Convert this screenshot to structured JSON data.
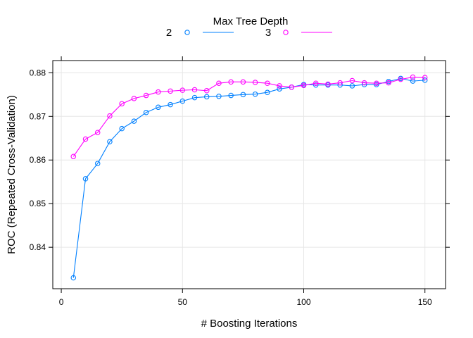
{
  "chart_data": {
    "type": "line",
    "legend": {
      "title": "Max Tree Depth",
      "placement": "top"
    },
    "xlabel": "# Boosting Iterations",
    "ylabel": "ROC (Repeated Cross-Validation)",
    "xlim": [
      -3.5,
      158.5
    ],
    "ylim": [
      0.8305,
      0.8828
    ],
    "xticks": [
      0,
      50,
      100,
      150
    ],
    "yticks": [
      0.84,
      0.85,
      0.86,
      0.87,
      0.88
    ],
    "xtick_labels": [
      "0",
      "50",
      "100",
      "150"
    ],
    "ytick_labels": [
      "0.84",
      "0.85",
      "0.86",
      "0.87",
      "0.88"
    ],
    "grid": true,
    "x": [
      5,
      10,
      15,
      20,
      25,
      30,
      35,
      40,
      45,
      50,
      55,
      60,
      65,
      70,
      75,
      80,
      85,
      90,
      95,
      100,
      105,
      110,
      115,
      120,
      125,
      130,
      135,
      140,
      145,
      150
    ],
    "series": [
      {
        "name": "2",
        "color": "#0080ff",
        "values": [
          0.833,
          0.8557,
          0.8592,
          0.8642,
          0.8672,
          0.8689,
          0.8709,
          0.8721,
          0.8727,
          0.8735,
          0.8743,
          0.8745,
          0.8746,
          0.8748,
          0.875,
          0.8751,
          0.8755,
          0.8763,
          0.8767,
          0.8773,
          0.8772,
          0.8772,
          0.8772,
          0.877,
          0.8773,
          0.8773,
          0.878,
          0.8787,
          0.8781,
          0.8783
        ]
      },
      {
        "name": "3",
        "color": "#ff00ff",
        "values": [
          0.8608,
          0.8648,
          0.8663,
          0.8701,
          0.8729,
          0.8741,
          0.8748,
          0.8756,
          0.8758,
          0.876,
          0.8761,
          0.8759,
          0.8776,
          0.8779,
          0.8779,
          0.8778,
          0.8776,
          0.877,
          0.8767,
          0.8771,
          0.8776,
          0.8774,
          0.8777,
          0.8782,
          0.8777,
          0.8776,
          0.8777,
          0.8785,
          0.879,
          0.8789
        ]
      }
    ]
  }
}
